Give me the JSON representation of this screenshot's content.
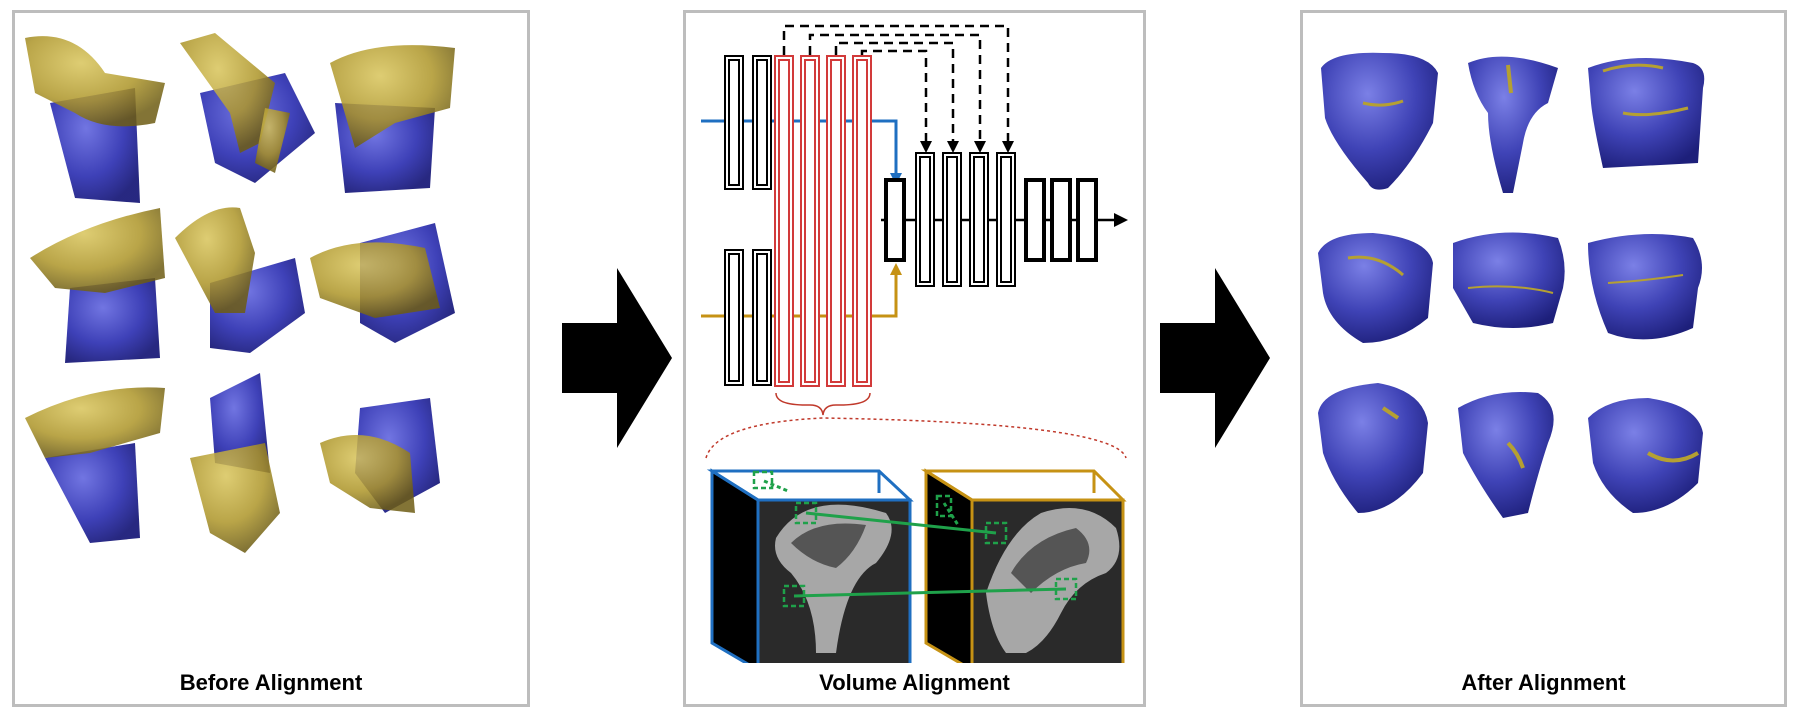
{
  "panels": {
    "before": {
      "caption": "Before Alignment"
    },
    "middle": {
      "caption": "Volume Alignment"
    },
    "after": {
      "caption": "After Alignment"
    }
  },
  "colors": {
    "border": "#bdbdbd",
    "bone_blue": "#3b3fb8",
    "bone_gold": "#b5a032",
    "input_blue": "#1f6fc1",
    "input_gold": "#c69214",
    "red_block": "#d23a3a",
    "match_green": "#1fa14a"
  },
  "icons": {
    "flow_arrow": "right-arrow-icon",
    "bone_model": "bone-3d-model-icon"
  }
}
